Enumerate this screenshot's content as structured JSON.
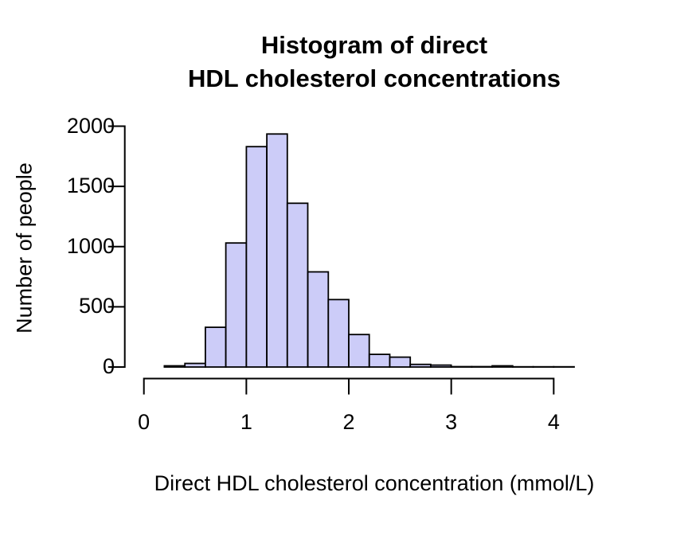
{
  "title": {
    "line1": "Histogram of direct",
    "line2": "HDL cholesterol concentrations"
  },
  "axes": {
    "x_label": "Direct HDL cholesterol concentration (mmol/L)",
    "y_label": "Number of people",
    "x_tick_labels": [
      "0",
      "1",
      "2",
      "3",
      "4"
    ],
    "y_tick_labels": [
      "0",
      "500",
      "1000",
      "1500",
      "2000"
    ]
  },
  "chart_data": {
    "type": "bar",
    "subtype": "histogram",
    "title": "Histogram of direct HDL cholesterol concentrations",
    "xlabel": "Direct HDL cholesterol concentration (mmol/L)",
    "ylabel": "Number of people",
    "bin_start": 0.2,
    "bin_width": 0.2,
    "bin_edges": [
      0.2,
      0.4,
      0.6,
      0.8,
      1.0,
      1.2,
      1.4,
      1.6,
      1.8,
      2.0,
      2.2,
      2.4,
      2.6,
      2.8,
      3.0,
      3.2,
      3.4,
      3.6,
      3.8,
      4.0,
      4.2
    ],
    "counts": [
      10,
      30,
      330,
      1030,
      1830,
      1935,
      1360,
      790,
      560,
      270,
      105,
      82,
      22,
      16,
      3,
      3,
      10,
      2,
      2,
      2
    ],
    "x_tick_values": [
      0,
      1,
      2,
      3,
      4
    ],
    "y_tick_values": [
      0,
      500,
      1000,
      1500,
      2000
    ],
    "xlim": [
      0,
      4.2
    ],
    "ylim": [
      0,
      2000
    ],
    "grid": false,
    "legend": false,
    "bar_fill": "#CCCCF8",
    "bar_stroke": "#000000",
    "axis_color": "#000000",
    "background": "#FFFFFF"
  }
}
